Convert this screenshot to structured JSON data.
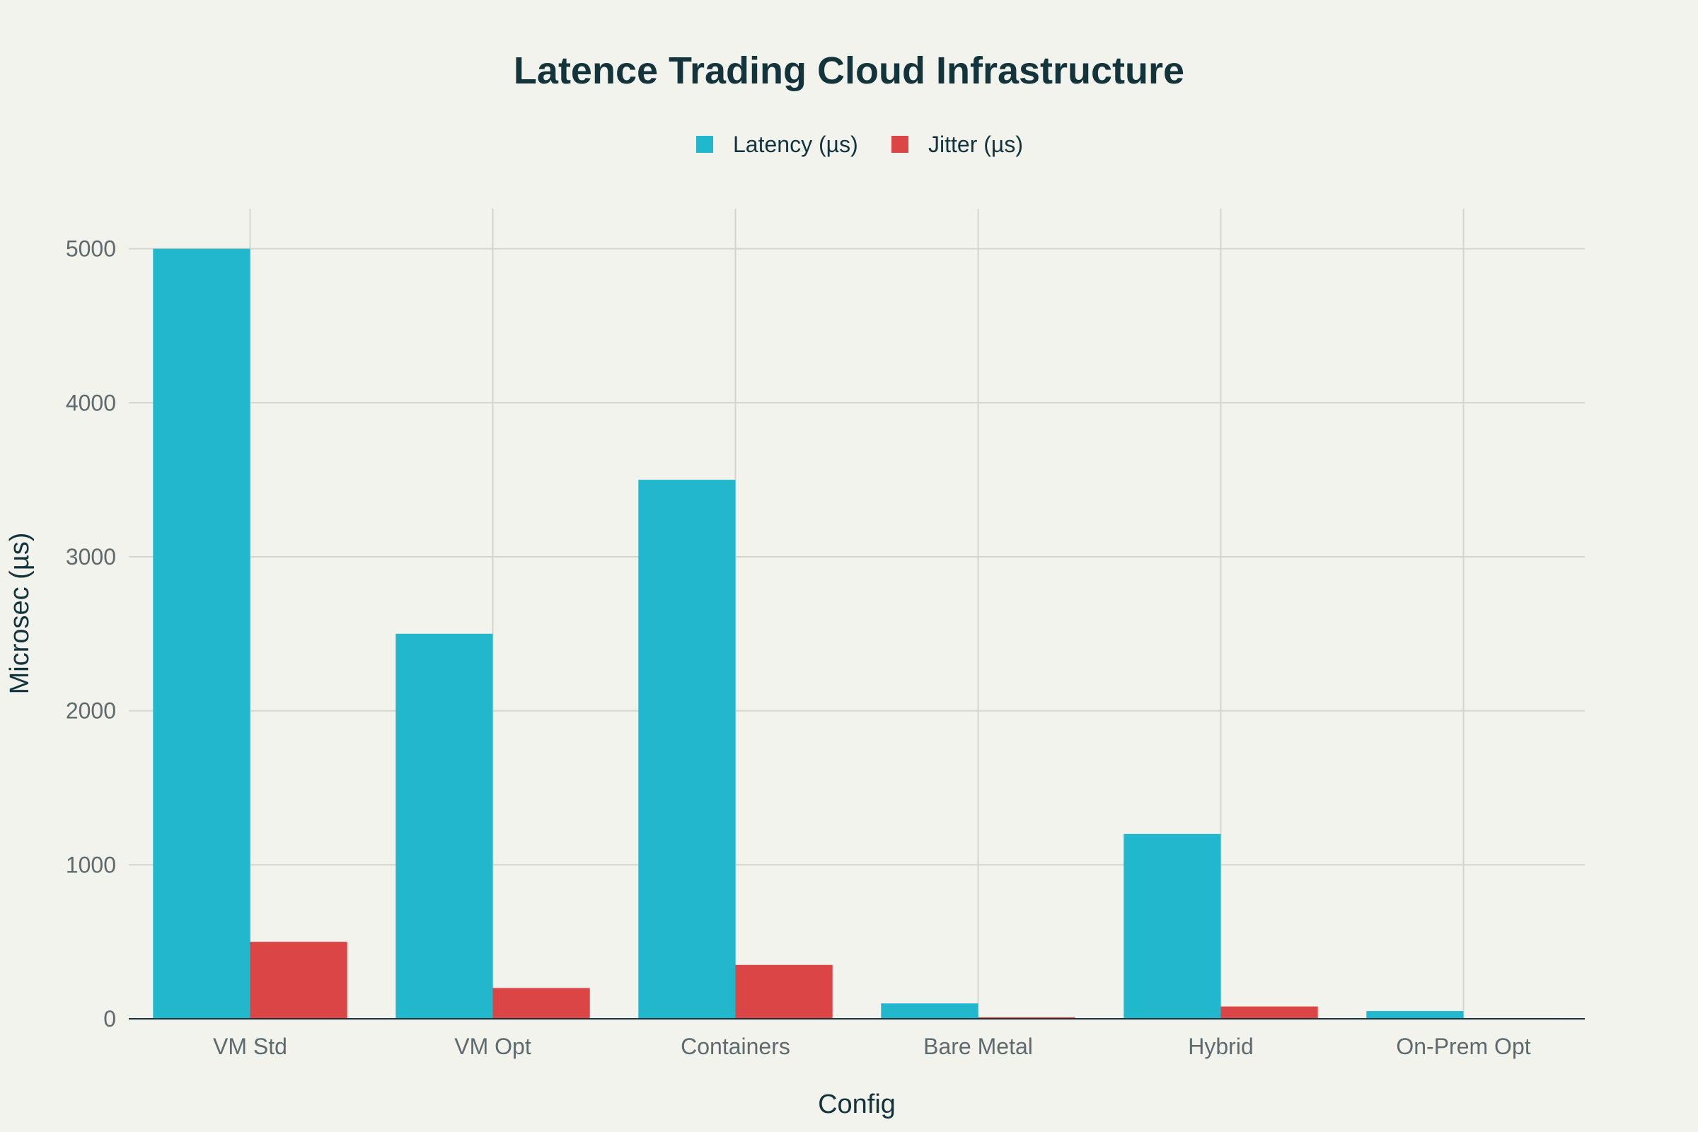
{
  "chart_data": {
    "type": "bar",
    "title": "Latence Trading Cloud Infrastructure",
    "xlabel": "Config",
    "ylabel": "Microsec (µs)",
    "categories": [
      "VM Std",
      "VM Opt",
      "Containers",
      "Bare Metal",
      "Hybrid",
      "On-Prem Opt"
    ],
    "series": [
      {
        "name": "Latency (µs)",
        "color": "#21b8cd",
        "values": [
          5000,
          2500,
          3500,
          100,
          1200,
          50
        ]
      },
      {
        "name": "Jitter (µs)",
        "color": "#db4545",
        "values": [
          500,
          200,
          350,
          10,
          80,
          5
        ]
      }
    ],
    "ylim": [
      0,
      5260
    ],
    "yticks": [
      0,
      1000,
      2000,
      3000,
      4000,
      5000
    ],
    "grid": true,
    "legend_position": "top-center"
  }
}
